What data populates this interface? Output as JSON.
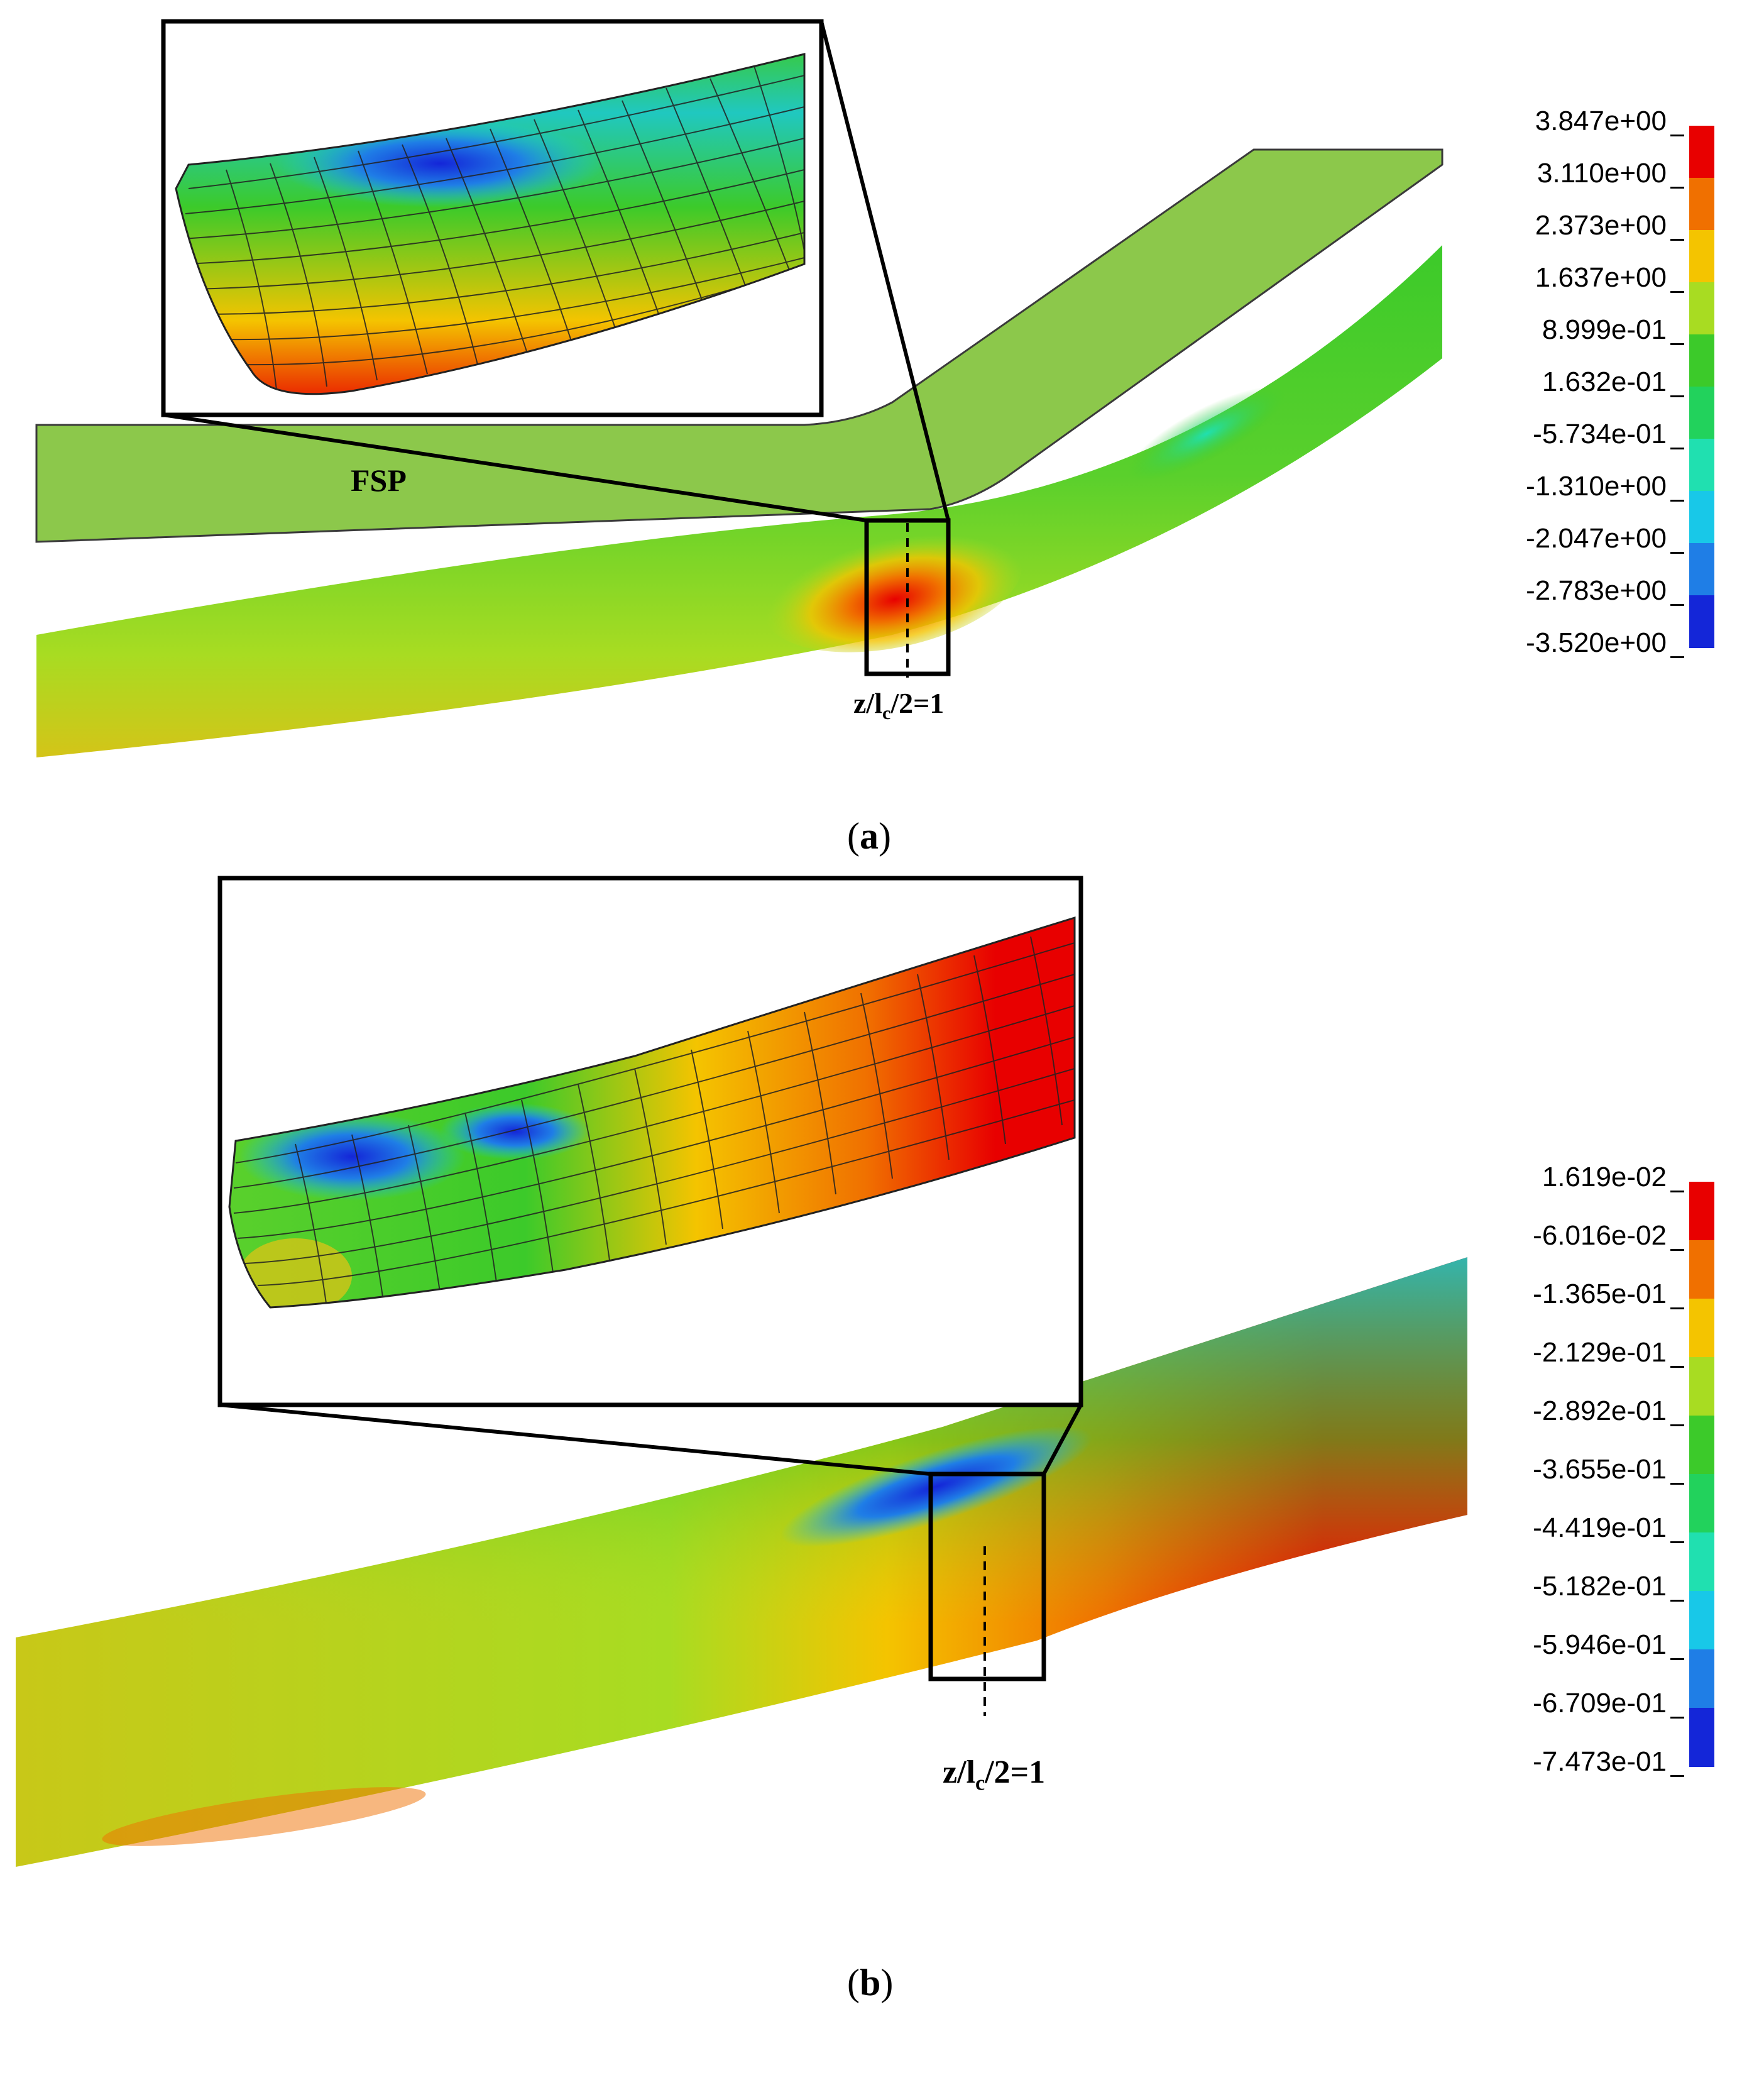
{
  "panel_a": {
    "caption_letter": "a",
    "fsp_label": "FSP",
    "location_label": {
      "base": "z/l",
      "sub": "c",
      "rest": "/2=1"
    },
    "legend": {
      "values": [
        "3.847e+00",
        "3.110e+00",
        "2.373e+00",
        "1.637e+00",
        "8.999e-01",
        "1.632e-01",
        "-5.734e-01",
        "-1.310e+00",
        "-2.047e+00",
        "-2.783e+00",
        "-3.520e+00"
      ],
      "colors": [
        "#e80000",
        "#f07000",
        "#f4c400",
        "#a8dc22",
        "#3cca2a",
        "#22d25c",
        "#20e0b0",
        "#18c8e8",
        "#1f7ee6",
        "#1426d8"
      ]
    }
  },
  "panel_b": {
    "caption_letter": "b",
    "location_label": {
      "base": "z/l",
      "sub": "c",
      "rest": "/2=1"
    },
    "legend": {
      "values": [
        "1.619e-02",
        "-6.016e-02",
        "-1.365e-01",
        "-2.129e-01",
        "-2.892e-01",
        "-3.655e-01",
        "-4.419e-01",
        "-5.182e-01",
        "-5.946e-01",
        "-6.709e-01",
        "-7.473e-01"
      ],
      "colors": [
        "#e80000",
        "#f07000",
        "#f4c400",
        "#a8dc22",
        "#3cca2a",
        "#22d25c",
        "#20e0b0",
        "#18c8e8",
        "#1f7ee6",
        "#1426d8"
      ]
    }
  }
}
